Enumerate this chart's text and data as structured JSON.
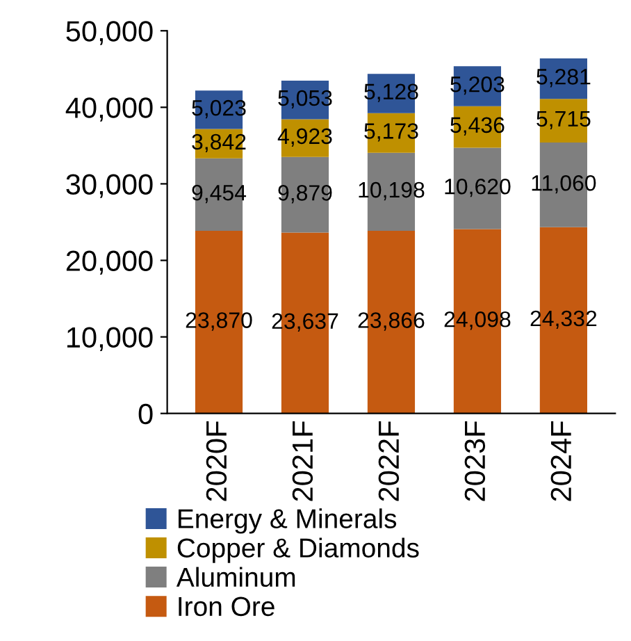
{
  "chart_data": {
    "type": "bar",
    "stacked": true,
    "categories": [
      "2020F",
      "2021F",
      "2022F",
      "2023F",
      "2024F"
    ],
    "series": [
      {
        "name": "Iron Ore",
        "color": "#c55a11",
        "values": [
          23870,
          23637,
          23866,
          24098,
          24332
        ],
        "value_labels": [
          "23,870",
          "23,637",
          "23,866",
          "24,098",
          "24,332"
        ]
      },
      {
        "name": "Aluminum",
        "color": "#7f7f7f",
        "values": [
          9454,
          9879,
          10198,
          10620,
          11060
        ],
        "value_labels": [
          "9,454",
          "9,879",
          "10,198",
          "10,620",
          "11,060"
        ]
      },
      {
        "name": "Copper & Diamonds",
        "color": "#bf9000",
        "values": [
          3842,
          4923,
          5173,
          5436,
          5715
        ],
        "value_labels": [
          "3,842",
          "4,923",
          "5,173",
          "5,436",
          "5,715"
        ]
      },
      {
        "name": "Energy & Minerals",
        "color": "#2f5597",
        "values": [
          5023,
          5053,
          5128,
          5203,
          5281
        ],
        "value_labels": [
          "5,023",
          "5,053",
          "5,128",
          "5,203",
          "5,281"
        ]
      }
    ],
    "ylim": [
      0,
      50000
    ],
    "yticks": [
      {
        "value": 0,
        "label": "0"
      },
      {
        "value": 10000,
        "label": "10,000"
      },
      {
        "value": 20000,
        "label": "20,000"
      },
      {
        "value": 30000,
        "label": "30,000"
      },
      {
        "value": 40000,
        "label": "40,000"
      },
      {
        "value": 50000,
        "label": "50,000"
      }
    ],
    "grid": false,
    "legend": "bottom"
  }
}
